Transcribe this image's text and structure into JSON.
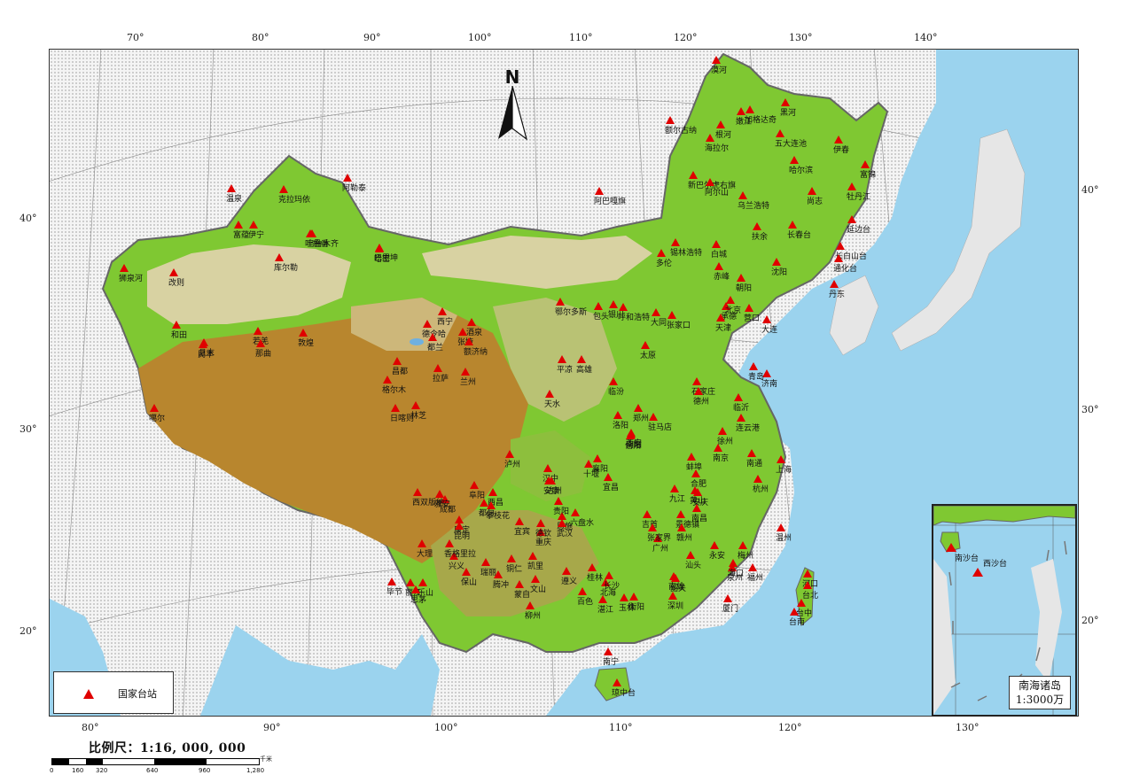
{
  "top_ticks": [
    "70°",
    "80°",
    "90°",
    "100°",
    "110°",
    "120°",
    "130°",
    "140°"
  ],
  "bottom_ticks": [
    "80°",
    "90°",
    "100°",
    "110°",
    "120°",
    "130°"
  ],
  "left_ticks": [
    "40°",
    "30°",
    "20°"
  ],
  "right_ticks": [
    "40°",
    "30°",
    "20°"
  ],
  "north_label": "N",
  "legend_label": "国家台站",
  "inset": {
    "title": "南海诸岛",
    "scale": "1:3000万",
    "stations": [
      "南沙台",
      "西沙台"
    ]
  },
  "scale": {
    "title": "比例尺：1:16, 000, 000",
    "unit": "千米",
    "ticks": [
      "0",
      "160",
      "320",
      "640",
      "960",
      "1,280"
    ]
  },
  "colors": {
    "station": "#e00000",
    "sea": "#9bd3ee",
    "lowland": "#7fc832",
    "plateau": "#b8862e",
    "desert": "#d8d2a2"
  },
  "stations": [
    "漠河",
    "黑河",
    "嫩江",
    "加格达奇",
    "五大连池",
    "根河",
    "海拉尔",
    "伊春",
    "富锦",
    "新巴尔虎右旗",
    "额尔古纳",
    "阿尔山",
    "哈尔滨",
    "牡丹江",
    "乌兰浩特",
    "尚志",
    "扶余",
    "长春台",
    "延边台",
    "阿巴嘎旗",
    "锡林浩特",
    "白城",
    "长白山台",
    "丹东",
    "通化台",
    "沈阳",
    "大连",
    "赤峰",
    "朝阳",
    "多伦",
    "承德",
    "张家口",
    "北京",
    "营口",
    "天津",
    "哈密",
    "吐鲁番",
    "乌鲁木齐",
    "巴里坤",
    "伊宁",
    "温泉",
    "阿勒泰",
    "克拉玛依",
    "富蕴",
    "库尔勒",
    "和田",
    "且末",
    "若羌",
    "民丰",
    "狮泉河",
    "改则",
    "那曲",
    "昌都",
    "拉萨",
    "日喀则",
    "林芝",
    "噶尔",
    "格尔木",
    "德令哈",
    "西宁",
    "都兰",
    "酒泉",
    "张掖",
    "敦煌",
    "额济纳",
    "兰州",
    "天水",
    "平凉",
    "银川",
    "包头",
    "呼和浩特",
    "鄂尔多斯",
    "大同",
    "太原",
    "临汾",
    "石家庄",
    "德州",
    "济南",
    "青岛",
    "临沂",
    "连云港",
    "徐州",
    "蚌埠",
    "合肥",
    "南京",
    "南通",
    "上海",
    "杭州",
    "温州",
    "黄山",
    "九江",
    "安庆",
    "南昌",
    "景德镇",
    "福州",
    "泉州",
    "厦门",
    "永安",
    "赣州",
    "南雄",
    "韶关",
    "广州",
    "深圳",
    "汕头",
    "梅州",
    "海口",
    "琼中台",
    "南宁",
    "百色",
    "柳州",
    "桂林",
    "北海",
    "湛江",
    "玉林",
    "衡阳",
    "长沙",
    "吉首",
    "张家界",
    "恩施",
    "武汉",
    "宜昌",
    "襄阳",
    "十堰",
    "汉中",
    "安康",
    "西安",
    "洛阳",
    "郑州",
    "南阳",
    "信阳",
    "驻马店",
    "阜阳",
    "成都",
    "康定",
    "雅安",
    "乐山",
    "西昌",
    "攀枝花",
    "宜宾",
    "泸州",
    "重庆",
    "达州",
    "贵阳",
    "遵义",
    "铜仁",
    "兴义",
    "昆明",
    "大理",
    "丽江",
    "保山",
    "腾冲",
    "思茅",
    "西双版纳",
    "香格里拉",
    "德钦",
    "六盘水",
    "凯里",
    "都匀",
    "毕节",
    "瑞丽",
    "蒙自",
    "文山",
    "河口",
    "台北",
    "台中",
    "台南",
    "高雄"
  ]
}
